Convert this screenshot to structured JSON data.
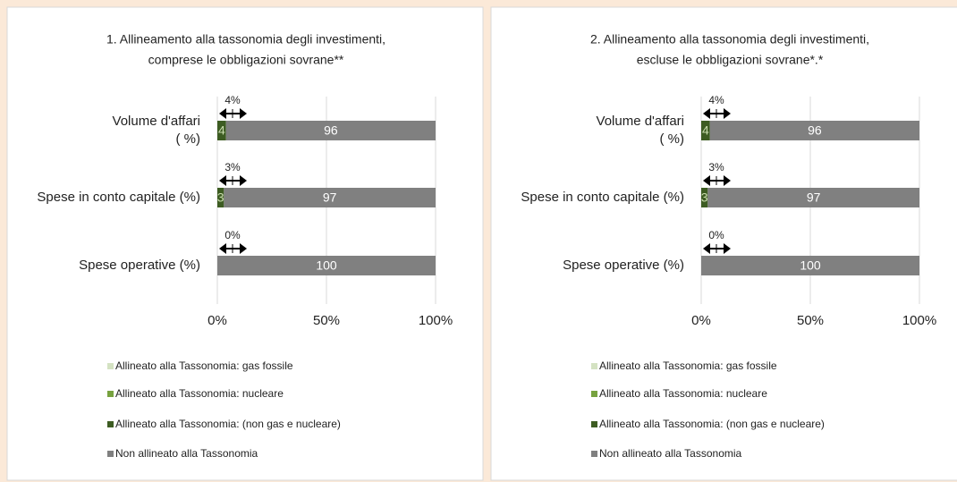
{
  "chart_data": [
    {
      "type": "bar",
      "orientation": "horizontal",
      "stacked": true,
      "title": "1. Allineamento alla tassonomia degli investimenti,\ncomprese le obbligazioni sovrane**",
      "categories": [
        "Volume d'affari\n( %)",
        "Spese in conto capitale (%)",
        "Spese operative (%)"
      ],
      "series": [
        {
          "name": "Allineato alla Tassonomia: gas fossile",
          "color": "#d4e2c2",
          "values": [
            0,
            0,
            0
          ]
        },
        {
          "name": "Allineato alla Tassonomia: nucleare",
          "color": "#77a23f",
          "values": [
            0,
            0,
            0
          ]
        },
        {
          "name": "Allineato alla Tassonomia: (non gas e nucleare)",
          "color": "#3d5c22",
          "values": [
            4,
            3,
            0
          ],
          "label_color": "#c9dcae"
        },
        {
          "name": "Non allineato alla Tassonomia",
          "color": "#808080",
          "values": [
            96,
            97,
            100
          ],
          "label_color": "#ffffff"
        }
      ],
      "annotations": [
        "4%",
        "3%",
        "0%"
      ],
      "xlim": [
        0,
        100
      ],
      "xticks": [
        {
          "value": 0,
          "label": "0%"
        },
        {
          "value": 50,
          "label": "50%"
        },
        {
          "value": 100,
          "label": "100%"
        }
      ],
      "grid": true,
      "legend": "bottom"
    },
    {
      "type": "bar",
      "orientation": "horizontal",
      "stacked": true,
      "title": "2. Allineamento alla tassonomia degli investimenti,\nescluse le obbligazioni sovrane*.*",
      "categories": [
        "Volume d'affari\n( %)",
        "Spese in conto capitale (%)",
        "Spese operative (%)"
      ],
      "series": [
        {
          "name": "Allineato alla Tassonomia: gas fossile",
          "color": "#d4e2c2",
          "values": [
            0,
            0,
            0
          ]
        },
        {
          "name": "Allineato alla Tassonomia: nucleare",
          "color": "#77a23f",
          "values": [
            0,
            0,
            0
          ]
        },
        {
          "name": "Allineato alla Tassonomia: (non gas e nucleare)",
          "color": "#3d5c22",
          "values": [
            4,
            3,
            0
          ],
          "label_color": "#c9dcae"
        },
        {
          "name": "Non allineato alla Tassonomia",
          "color": "#808080",
          "values": [
            96,
            97,
            100
          ],
          "label_color": "#ffffff"
        }
      ],
      "annotations": [
        "4%",
        "3%",
        "0%"
      ],
      "xlim": [
        0,
        100
      ],
      "xticks": [
        {
          "value": 0,
          "label": "0%"
        },
        {
          "value": 50,
          "label": "50%"
        },
        {
          "value": 100,
          "label": "100%"
        }
      ],
      "grid": true,
      "legend": "bottom"
    }
  ]
}
